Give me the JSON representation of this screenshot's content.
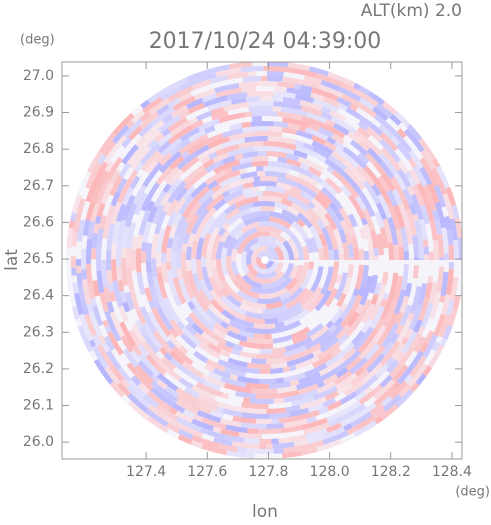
{
  "chart_data": {
    "type": "radar-ppi",
    "title": "2017/10/24 04:39:00",
    "subtitle": "ALT(km) 2.0",
    "x_label": "lon",
    "x_unit": "(deg)",
    "y_label": "lat",
    "y_unit": "(deg)",
    "xlim": [
      127.125,
      128.433
    ],
    "ylim": [
      25.954,
      27.038
    ],
    "xticks": [
      127.4,
      127.6,
      127.8,
      {
        "value": 128.0,
        "label": "128.0"
      },
      128.2,
      128.4
    ],
    "yticks": [
      {
        "value": 26.0,
        "label": "26.0"
      },
      26.1,
      26.2,
      26.3,
      26.4,
      26.5,
      26.6,
      26.7,
      26.8,
      26.9,
      {
        "value": 27.0,
        "label": "27.0"
      }
    ],
    "colors": [
      "#ff9a9a",
      "#9a9aff"
    ]
  }
}
